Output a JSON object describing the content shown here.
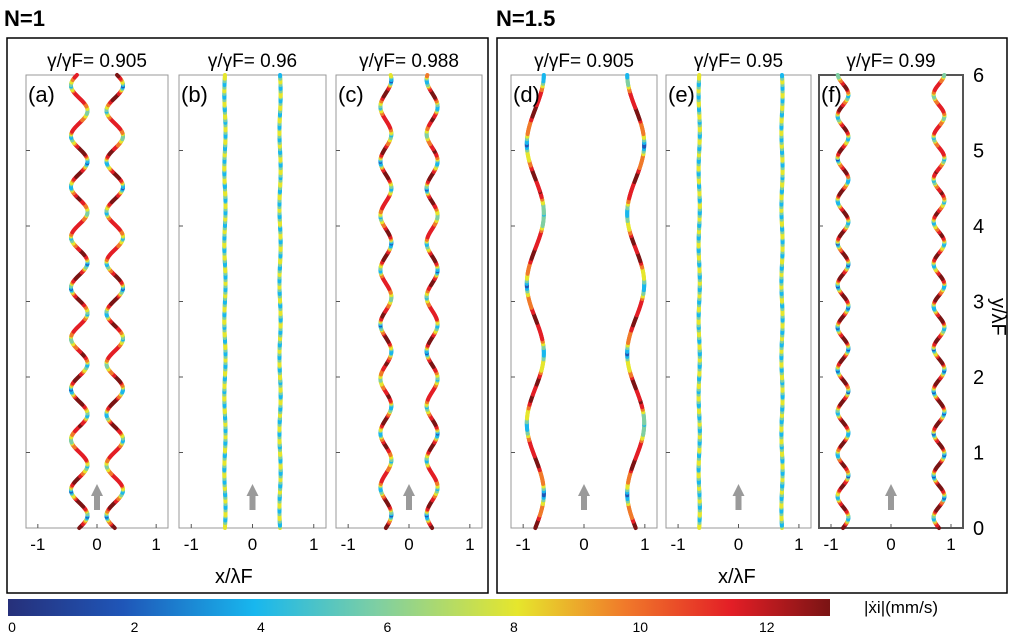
{
  "groups": [
    {
      "label": "N=1"
    },
    {
      "label": "N=1.5"
    }
  ],
  "panels": [
    {
      "id": "(a)",
      "ratio": "0.905",
      "group": 0
    },
    {
      "id": "(b)",
      "ratio": "0.96",
      "group": 0
    },
    {
      "id": "(c)",
      "ratio": "0.988",
      "group": 0
    },
    {
      "id": "(d)",
      "ratio": "0.905",
      "group": 1
    },
    {
      "id": "(e)",
      "ratio": "0.95",
      "group": 1
    },
    {
      "id": "(f)",
      "ratio": "0.99",
      "group": 1
    }
  ],
  "ratio_label": "γ/γF=",
  "xlabel": "x/λF",
  "ylabel": "y/λF",
  "colorbar": {
    "label": "|ẋi|(mm/s)",
    "ticks": [
      "0",
      "2",
      "4",
      "6",
      "8",
      "10",
      "12"
    ],
    "range": [
      0,
      13
    ],
    "colors": [
      "#26307a",
      "#1f56b8",
      "#18b7ee",
      "#7fcfa2",
      "#e6e62c",
      "#f07a2a",
      "#e31e26",
      "#7a1414"
    ]
  },
  "chart_data": [
    {
      "type": "line",
      "panel": "(a)",
      "N": "1",
      "ratio": "0.905",
      "xlim": [
        -1.2,
        1.2
      ],
      "ylim": [
        0,
        6
      ],
      "xticks": [
        -1,
        0,
        1
      ],
      "series": [
        {
          "center_x": -0.3,
          "amplitude": 0.14,
          "wavelength": 0.67
        },
        {
          "center_x": 0.3,
          "amplitude": 0.14,
          "wavelength": 0.67
        }
      ]
    },
    {
      "type": "line",
      "panel": "(b)",
      "N": "1",
      "ratio": "0.96",
      "xlim": [
        -1.2,
        1.2
      ],
      "ylim": [
        0,
        6
      ],
      "xticks": [
        -1,
        0,
        1
      ],
      "series": [
        {
          "center_x": -0.45,
          "amplitude": 0.01,
          "wavelength": 1.0
        },
        {
          "center_x": 0.45,
          "amplitude": 0.01,
          "wavelength": 1.0
        }
      ]
    },
    {
      "type": "line",
      "panel": "(c)",
      "N": "1",
      "ratio": "0.988",
      "xlim": [
        -1.2,
        1.2
      ],
      "ylim": [
        0,
        6
      ],
      "xticks": [
        -1,
        0,
        1
      ],
      "series": [
        {
          "center_x": -0.38,
          "amplitude": 0.09,
          "wavelength": 0.72
        },
        {
          "center_x": 0.38,
          "amplitude": 0.09,
          "wavelength": 0.72
        }
      ]
    },
    {
      "type": "line",
      "panel": "(d)",
      "N": "1.5",
      "ratio": "0.905",
      "xlim": [
        -1.2,
        1.2
      ],
      "ylim": [
        0,
        6
      ],
      "xticks": [
        -1,
        0,
        1
      ],
      "series": [
        {
          "center_x": -0.8,
          "amplitude": 0.14,
          "wavelength": 1.85
        },
        {
          "center_x": 0.85,
          "amplitude": 0.14,
          "wavelength": 1.85
        }
      ]
    },
    {
      "type": "line",
      "panel": "(e)",
      "N": "1.5",
      "ratio": "0.95",
      "xlim": [
        -1.2,
        1.2
      ],
      "ylim": [
        0,
        6
      ],
      "xticks": [
        -1,
        0,
        1
      ],
      "series": [
        {
          "center_x": -0.65,
          "amplitude": 0.01,
          "wavelength": 1.0
        },
        {
          "center_x": 0.72,
          "amplitude": 0.01,
          "wavelength": 1.0
        }
      ]
    },
    {
      "type": "line",
      "panel": "(f)",
      "N": "1.5",
      "ratio": "0.99",
      "xlim": [
        -1.2,
        1.2
      ],
      "ylim": [
        0,
        6
      ],
      "xticks": [
        -1,
        0,
        1
      ],
      "yticks": [
        0,
        1,
        2,
        3,
        4,
        5,
        6
      ],
      "series": [
        {
          "center_x": -0.8,
          "amplitude": 0.09,
          "wavelength": 0.56
        },
        {
          "center_x": 0.8,
          "amplitude": 0.09,
          "wavelength": 0.56
        }
      ]
    }
  ]
}
